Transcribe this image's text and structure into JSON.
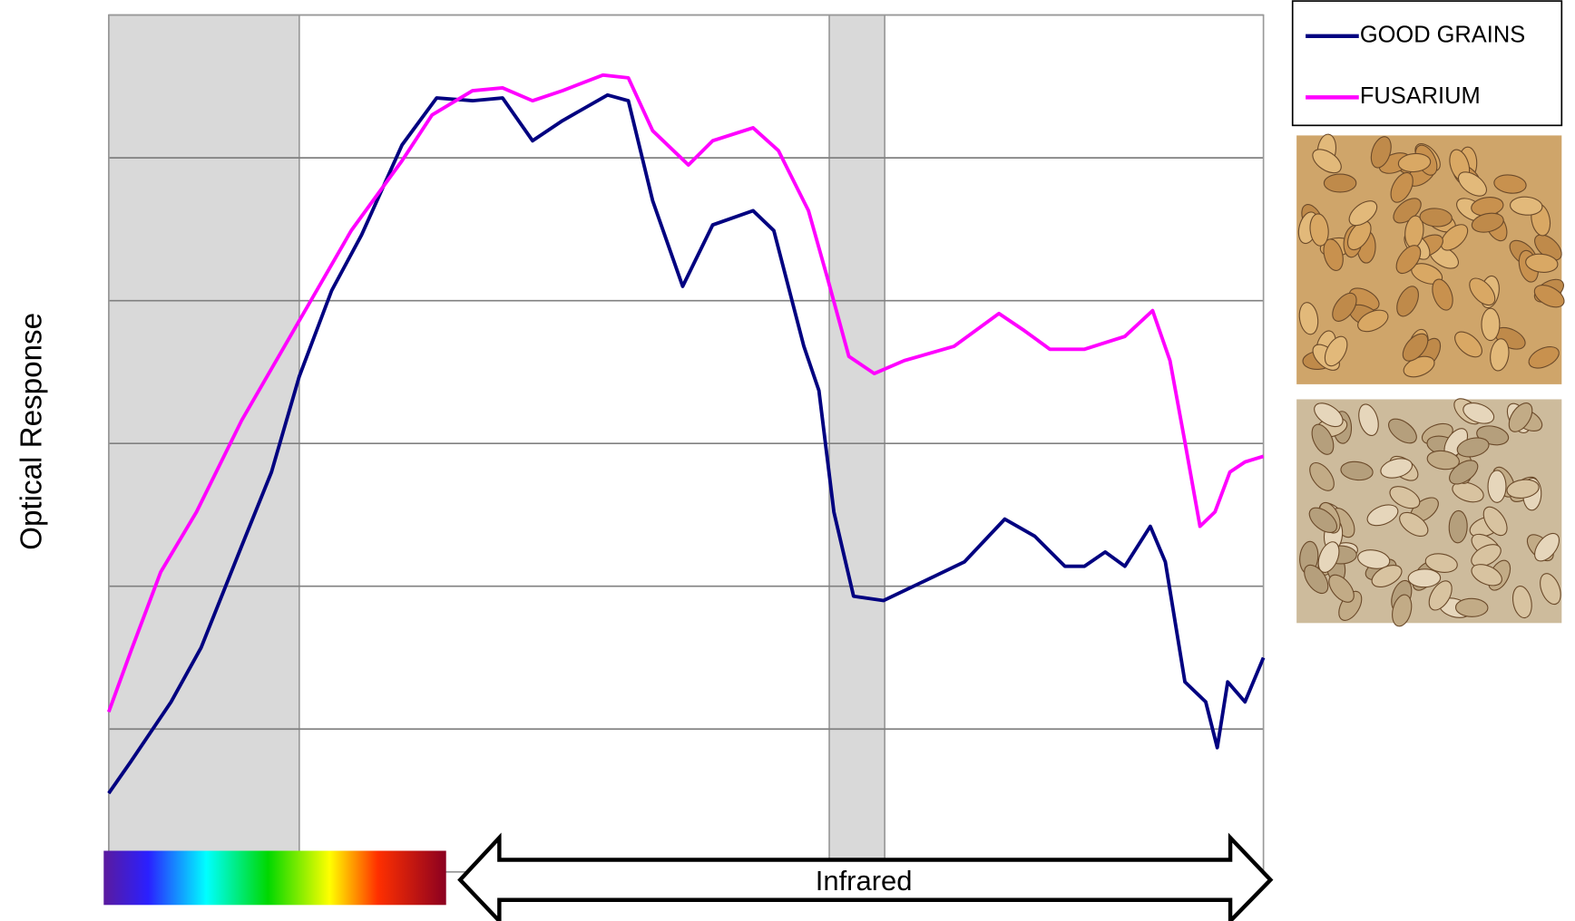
{
  "chart_data": {
    "type": "line",
    "y_label": "Optical Response",
    "annotation": "Infrared",
    "ylim": [
      0,
      6
    ],
    "yticks": [
      0,
      1,
      2,
      3,
      4,
      5,
      6
    ],
    "xlim": [
      0,
      100
    ],
    "grid": true,
    "shaded_regions": [
      [
        0,
        16.5
      ],
      [
        62.4,
        67.2
      ]
    ],
    "legend": "top-right",
    "series": [
      {
        "name": "GOOD GRAINS",
        "color": "#000080",
        "x": [
          0,
          1.9,
          5.4,
          8,
          11.5,
          14.1,
          16.5,
          19.3,
          21.9,
          25.4,
          28.4,
          31.5,
          34.1,
          36.7,
          39.3,
          43.2,
          45,
          47.1,
          49.7,
          52.3,
          55.8,
          57.6,
          60.2,
          61.5,
          62.8,
          64.5,
          67.1,
          71.5,
          74.1,
          77.6,
          80.2,
          82.8,
          84.5,
          86.3,
          88,
          90.2,
          91.5,
          93.2,
          95,
          96,
          96.9,
          98.4,
          100
        ],
        "values": [
          0.55,
          0.77,
          1.19,
          1.57,
          2.28,
          2.8,
          3.47,
          4.07,
          4.46,
          5.09,
          5.42,
          5.4,
          5.42,
          5.12,
          5.26,
          5.44,
          5.4,
          4.7,
          4.1,
          4.53,
          4.63,
          4.49,
          3.68,
          3.37,
          2.52,
          1.93,
          1.9,
          2.07,
          2.17,
          2.47,
          2.35,
          2.14,
          2.14,
          2.24,
          2.14,
          2.42,
          2.17,
          1.33,
          1.19,
          0.87,
          1.33,
          1.19,
          1.5
        ]
      },
      {
        "name": "FUSARIUM",
        "color": "#ff00ff",
        "x": [
          0,
          1.9,
          4.5,
          7.6,
          11.5,
          16.5,
          21,
          25.4,
          28,
          31.5,
          34.1,
          36.7,
          39.3,
          42.8,
          45,
          47.1,
          50.2,
          52.3,
          55.8,
          58,
          60.6,
          62.3,
          64.1,
          66.3,
          68.9,
          73.2,
          77.1,
          79.3,
          81.5,
          84.5,
          88,
          90.4,
          91.9,
          93.2,
          94.5,
          95.8,
          97.1,
          98.4,
          100
        ],
        "values": [
          1.12,
          1.54,
          2.1,
          2.52,
          3.16,
          3.86,
          4.49,
          4.98,
          5.3,
          5.47,
          5.49,
          5.4,
          5.47,
          5.58,
          5.56,
          5.19,
          4.95,
          5.12,
          5.21,
          5.05,
          4.63,
          4.14,
          3.61,
          3.49,
          3.58,
          3.68,
          3.91,
          3.79,
          3.66,
          3.66,
          3.75,
          3.93,
          3.58,
          3.01,
          2.42,
          2.52,
          2.8,
          2.87,
          2.91
        ]
      }
    ]
  }
}
